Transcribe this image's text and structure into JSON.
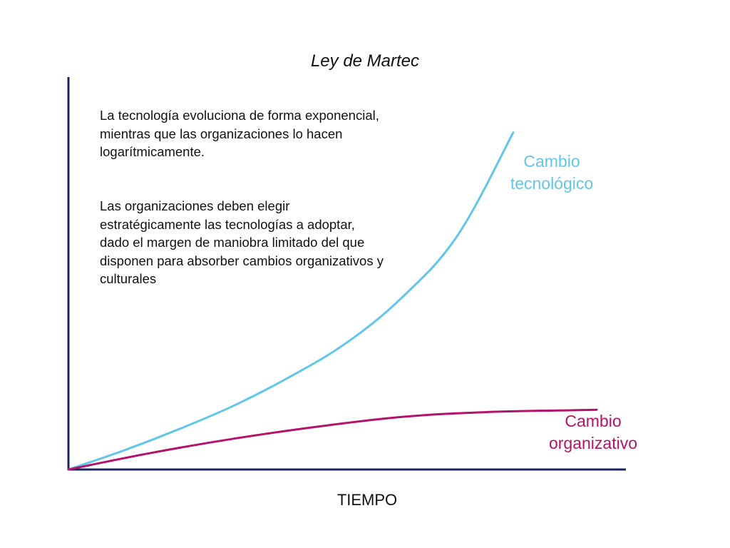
{
  "diagram": {
    "title": "Ley de Martec",
    "description": [
      "La tecnología evoluciona de forma exponencial, mientras que las organizaciones lo hacen logarítmicamente.",
      "Las organizaciones deben elegir estratégicamente las tecnologías a adoptar, dado el margen de maniobra limitado del que disponen para absorber cambios organizativos y culturales"
    ],
    "xlabel": "TIEMPO"
  },
  "chart_data": {
    "type": "line",
    "title": "Ley de Martec",
    "xlabel": "TIEMPO",
    "ylabel": "",
    "grid": false,
    "series": [
      {
        "name": "Cambio tecnológico",
        "color": "#62c6e8",
        "points": [
          [
            0,
            0
          ],
          [
            10,
            8
          ],
          [
            20,
            17
          ],
          [
            30,
            27
          ],
          [
            40,
            39
          ],
          [
            50,
            53
          ],
          [
            60,
            72
          ],
          [
            70,
            98
          ],
          [
            80,
            141
          ]
        ]
      },
      {
        "name": "Cambio organizativo",
        "color": "#b3136b",
        "points": [
          [
            0,
            0
          ],
          [
            15,
            7
          ],
          [
            30,
            13
          ],
          [
            45,
            18
          ],
          [
            60,
            22
          ],
          [
            75,
            24
          ],
          [
            95,
            25
          ]
        ]
      }
    ]
  },
  "colors": {
    "axis": "#1a2660",
    "text": "#111111"
  }
}
